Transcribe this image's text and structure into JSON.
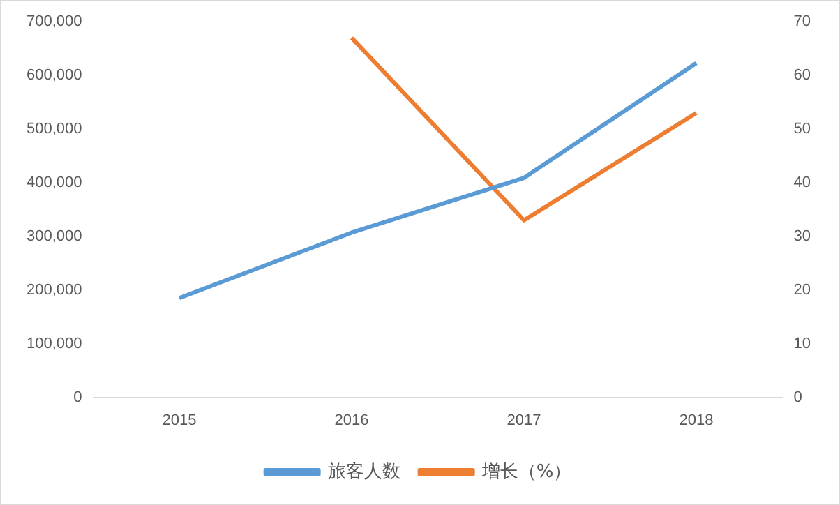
{
  "chart_data": {
    "type": "line",
    "categories": [
      "2015",
      "2016",
      "2017",
      "2018"
    ],
    "series": [
      {
        "name": "旅客人数",
        "color": "#5b9bd5",
        "values": [
          185000,
          307000,
          409000,
          623000
        ]
      },
      {
        "name": "增长（%）",
        "color": "#ed7d31",
        "axis": "y2",
        "values": [
          null,
          67,
          33,
          53
        ]
      }
    ],
    "ylim": [
      0,
      700000
    ],
    "yticks": [
      {
        "value": 0,
        "label": "0"
      },
      {
        "value": 100000,
        "label": "100,000"
      },
      {
        "value": 200000,
        "label": "200,000"
      },
      {
        "value": 300000,
        "label": "300,000"
      },
      {
        "value": 400000,
        "label": "400,000"
      },
      {
        "value": 500000,
        "label": "500,000"
      },
      {
        "value": 600000,
        "label": "600,000"
      },
      {
        "value": 700000,
        "label": "700,000"
      }
    ],
    "y2lim": [
      0,
      70
    ],
    "y2ticks": [
      0,
      10,
      20,
      30,
      40,
      50,
      60,
      70
    ],
    "legend": "bottom",
    "marker": "none",
    "line_style": "solid"
  }
}
